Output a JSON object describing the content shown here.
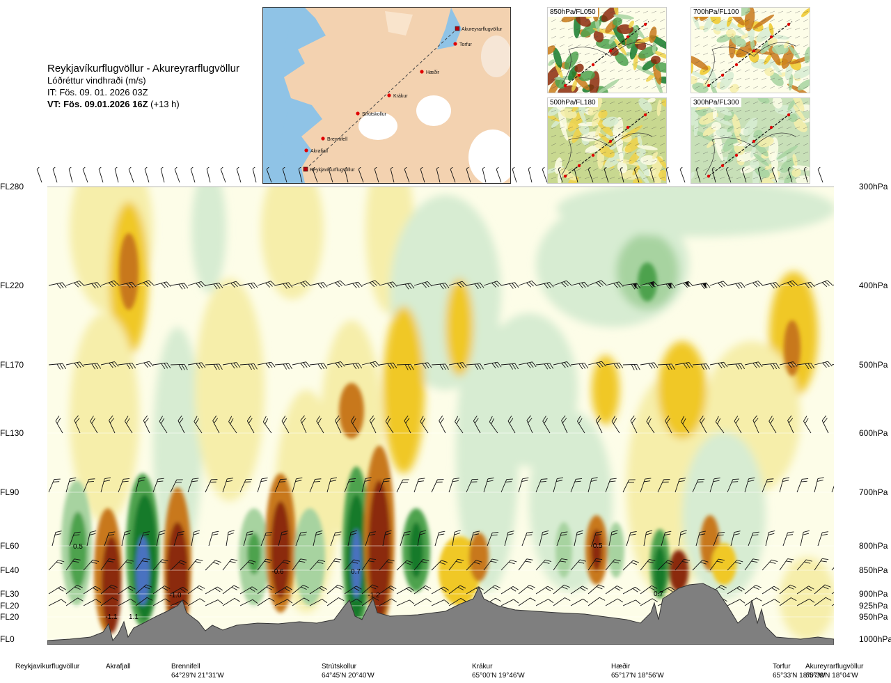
{
  "header": {
    "route": "Reykjavíkurflugvöllur - Akureyrarflugvöllur",
    "subtitle": "Lóðréttur vindhraði (m/s)",
    "issue_time": "IT: Fös. 09. 01. 2026 03Z",
    "valid_time_bold": "VT: Fös. 09.01.2026 16Z",
    "valid_time_offset": "(+13 h)"
  },
  "route_map": {
    "points": [
      {
        "name": "Akureyrarflugvöllur"
      },
      {
        "name": "Torfur"
      },
      {
        "name": "Hæðir"
      },
      {
        "name": "Krákur"
      },
      {
        "name": "Strútskollur"
      },
      {
        "name": "Brennifell"
      },
      {
        "name": "Akrafjall"
      },
      {
        "name": "Reykjavíkurflugvöllur"
      }
    ],
    "colors": {
      "sea": "#8fc3e6",
      "land": "#f3d2b0",
      "ice": "#ffffff",
      "route": "#e00000"
    }
  },
  "mini_maps": [
    {
      "label": "850hPa/FL050"
    },
    {
      "label": "700hPa/FL100"
    },
    {
      "label": "500hPa/FL180"
    },
    {
      "label": "300hPa/FL300"
    }
  ],
  "chart_data": {
    "type": "heatmap",
    "title": "Lóðréttur vindhraði (m/s)",
    "flight_levels": [
      "FL280",
      "FL220",
      "FL170",
      "FL130",
      "FL90",
      "FL60",
      "FL40",
      "FL30",
      "FL20",
      "FL20",
      "FL0"
    ],
    "pressure_levels": [
      "300hPa",
      "400hPa",
      "500hPa",
      "600hPa",
      "700hPa",
      "800hPa",
      "850hPa",
      "900hPa",
      "925hPa",
      "950hPa",
      "1000hPa"
    ],
    "locations": [
      {
        "name": "Reykjavíkurflugvöllur",
        "coord": ""
      },
      {
        "name": "Akrafjall",
        "coord": ""
      },
      {
        "name": "Brennifell",
        "coord": "64°29'N 21°31'W"
      },
      {
        "name": "Strútskollur",
        "coord": "64°45'N 20°40'W"
      },
      {
        "name": "Krákur",
        "coord": "65°00'N 19°46'W"
      },
      {
        "name": "Hæðir",
        "coord": "65°17'N 18°56'W"
      },
      {
        "name": "Torfur",
        "coord": "65°33'N 18°07'W"
      },
      {
        "name": "Akureyrarflugvöllur",
        "coord": "65°39'N 18°04'W"
      }
    ],
    "value_labels": [
      "0.5",
      "-1.1",
      "1.1",
      "-1.0",
      "-0.6",
      "0.7",
      "-1.2",
      "-0.5",
      "0.7"
    ],
    "colors": {
      "strong_down": "#8b2a0a",
      "down": "#c8781a",
      "weak_down": "#f0c828",
      "very_weak_down": "#f6eeaa",
      "neutral": "#fdfde8",
      "very_weak_up": "#d7ecd2",
      "weak_up": "#a7d3a0",
      "up": "#4ea24e",
      "strong_up": "#157a2a",
      "max_up": "#4a72c0",
      "terrain": "#7f7f7f"
    }
  }
}
